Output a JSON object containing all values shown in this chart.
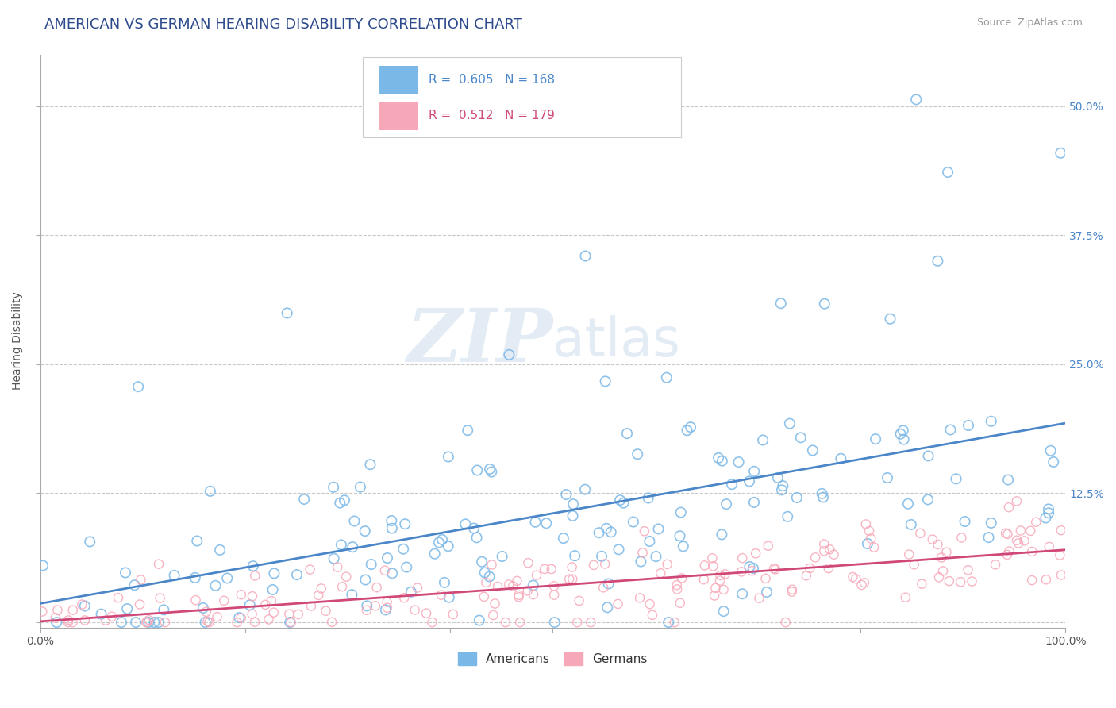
{
  "title": "AMERICAN VS GERMAN HEARING DISABILITY CORRELATION CHART",
  "source": "Source: ZipAtlas.com",
  "ylabel": "Hearing Disability",
  "american_R": 0.605,
  "american_N": 168,
  "german_R": 0.512,
  "german_N": 179,
  "american_color": "#7ab8e8",
  "german_color": "#f7a8b8",
  "american_line_color": "#4a86c8",
  "german_line_color": "#d04878",
  "background_color": "#ffffff",
  "watermark_color": "#c8d8ec",
  "ytick_labels": [
    "",
    "12.5%",
    "25.0%",
    "37.5%",
    "50.0%"
  ],
  "ytick_values": [
    0.0,
    0.125,
    0.25,
    0.375,
    0.5
  ],
  "xmin": 0.0,
  "xmax": 1.0,
  "ymin": -0.005,
  "ymax": 0.55,
  "title_color": "#2c4a8c",
  "title_fontsize": 13,
  "axis_label_fontsize": 10,
  "tick_fontsize": 10,
  "ytick_color": "#4a86c8"
}
